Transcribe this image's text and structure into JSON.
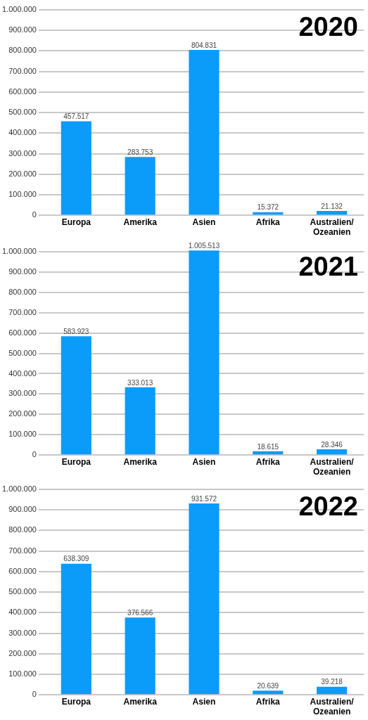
{
  "chart_data": [
    {
      "type": "bar",
      "title": "2020",
      "categories": [
        "Europa",
        "Amerika",
        "Asien",
        "Afrika",
        "Australien/Ozeanien"
      ],
      "values": [
        457517,
        283753,
        804831,
        15372,
        21132
      ],
      "value_labels": [
        "457.517",
        "283.753",
        "804.831",
        "15.372",
        "21.132"
      ],
      "color": "#0a9cf8",
      "ylim": [
        0,
        1000000
      ],
      "yticks": [
        {
          "value": 0,
          "label": "0"
        },
        {
          "value": 100000,
          "label": "100.000"
        },
        {
          "value": 200000,
          "label": "200.000"
        },
        {
          "value": 300000,
          "label": "300.000"
        },
        {
          "value": 400000,
          "label": "400.000"
        },
        {
          "value": 500000,
          "label": "500.000"
        },
        {
          "value": 600000,
          "label": "600.000"
        },
        {
          "value": 700000,
          "label": "700.000"
        },
        {
          "value": 800000,
          "label": "800.000"
        },
        {
          "value": 900000,
          "label": "900.000"
        },
        {
          "value": 1000000,
          "label": "1.000.000"
        }
      ],
      "grid": "y",
      "legend": false
    },
    {
      "type": "bar",
      "title": "2021",
      "categories": [
        "Europa",
        "Amerika",
        "Asien",
        "Afrika",
        "Australien/Ozeanien"
      ],
      "values": [
        583923,
        333013,
        1005513,
        18615,
        28346
      ],
      "value_labels": [
        "583.923",
        "333.013",
        "1.005.513",
        "18.615",
        "28.346"
      ],
      "color": "#0a9cf8",
      "ylim": [
        0,
        1010000
      ],
      "yticks": [
        {
          "value": 0,
          "label": "0"
        },
        {
          "value": 100000,
          "label": "100.000"
        },
        {
          "value": 200000,
          "label": "200.000"
        },
        {
          "value": 300000,
          "label": "300.000"
        },
        {
          "value": 400000,
          "label": "400.000"
        },
        {
          "value": 500000,
          "label": "500.000"
        },
        {
          "value": 600000,
          "label": "600.000"
        },
        {
          "value": 700000,
          "label": "700.000"
        },
        {
          "value": 800000,
          "label": "800.000"
        },
        {
          "value": 900000,
          "label": "900.000"
        },
        {
          "value": 1000000,
          "label": "1.000.000"
        }
      ],
      "grid": "y",
      "legend": false
    },
    {
      "type": "bar",
      "title": "2022",
      "categories": [
        "Europa",
        "Amerika",
        "Asien",
        "Afrika",
        "Australien/Ozeanien"
      ],
      "values": [
        638309,
        376566,
        931572,
        20639,
        39218
      ],
      "value_labels": [
        "638.309",
        "376.566",
        "931.572",
        "20.639",
        "39.218"
      ],
      "color": "#0a9cf8",
      "ylim": [
        0,
        1000000
      ],
      "yticks": [
        {
          "value": 0,
          "label": "0"
        },
        {
          "value": 100000,
          "label": "100.000"
        },
        {
          "value": 200000,
          "label": "200.000"
        },
        {
          "value": 300000,
          "label": "300.000"
        },
        {
          "value": 400000,
          "label": "400.000"
        },
        {
          "value": 500000,
          "label": "500.000"
        },
        {
          "value": 600000,
          "label": "600.000"
        },
        {
          "value": 700000,
          "label": "700.000"
        },
        {
          "value": 800000,
          "label": "800.000"
        },
        {
          "value": 900000,
          "label": "900.000"
        },
        {
          "value": 1000000,
          "label": "1.000.000"
        }
      ],
      "grid": "y",
      "legend": false
    }
  ]
}
